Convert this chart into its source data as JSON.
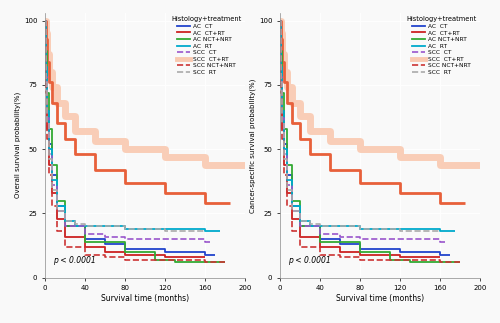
{
  "title_left": "Overall survival probability(%)",
  "title_right": "Cancer-specific survival probability(%)",
  "xlabel": "Survival time (months)",
  "pvalue": "p < 0.0001",
  "legend_title": "Histology+treatment",
  "background": "#f9f9f9",
  "grid_color": "#ffffff",
  "xlim": [
    0,
    200
  ],
  "ylim": [
    0,
    100
  ],
  "xticks": [
    0,
    40,
    80,
    120,
    160,
    200
  ],
  "yticks": [
    0,
    25,
    50,
    75,
    100
  ],
  "curves": [
    {
      "key": "SCC_CT_RT_band",
      "color": "#f9c9b0",
      "ls": "-",
      "lw": 5.0,
      "alpha": 0.9,
      "times": [
        0,
        1,
        1,
        2,
        2,
        4,
        4,
        7,
        7,
        12,
        12,
        20,
        20,
        30,
        30,
        50,
        50,
        80,
        80,
        120,
        120,
        160,
        160,
        200
      ],
      "surv": [
        100,
        100,
        95,
        95,
        87,
        87,
        80,
        80,
        74,
        74,
        68,
        68,
        63,
        63,
        57,
        57,
        53,
        53,
        50,
        50,
        47,
        47,
        44,
        44
      ]
    },
    {
      "key": "SCC_CT_RT",
      "color": "#e8603a",
      "ls": "-",
      "lw": 2.0,
      "alpha": 1.0,
      "times": [
        0,
        1,
        1,
        2,
        2,
        4,
        4,
        7,
        7,
        12,
        12,
        20,
        20,
        30,
        30,
        50,
        50,
        80,
        80,
        120,
        120,
        160,
        160,
        185
      ],
      "surv": [
        100,
        100,
        93,
        93,
        84,
        84,
        76,
        76,
        68,
        68,
        60,
        60,
        54,
        54,
        48,
        48,
        42,
        42,
        37,
        37,
        33,
        33,
        29,
        29
      ]
    },
    {
      "key": "AC_CT",
      "color": "#2244cc",
      "ls": "-",
      "lw": 1.3,
      "alpha": 1.0,
      "times": [
        0,
        1,
        1,
        2,
        2,
        4,
        4,
        7,
        7,
        12,
        12,
        20,
        20,
        40,
        40,
        60,
        60,
        80,
        80,
        120,
        120,
        160,
        160,
        170
      ],
      "surv": [
        100,
        100,
        80,
        80,
        65,
        65,
        52,
        52,
        40,
        40,
        28,
        28,
        20,
        20,
        15,
        15,
        13,
        13,
        11,
        11,
        10,
        10,
        9,
        9
      ]
    },
    {
      "key": "AC_CT_RT",
      "color": "#cc2222",
      "ls": "-",
      "lw": 1.3,
      "alpha": 1.0,
      "times": [
        0,
        1,
        1,
        2,
        2,
        4,
        4,
        7,
        7,
        12,
        12,
        20,
        20,
        40,
        40,
        60,
        60,
        80,
        80,
        120,
        120,
        160
      ],
      "surv": [
        100,
        100,
        75,
        75,
        58,
        58,
        44,
        44,
        33,
        33,
        23,
        23,
        16,
        16,
        12,
        12,
        10,
        10,
        9,
        9,
        8,
        8
      ]
    },
    {
      "key": "AC_NCT_NRT",
      "color": "#33aa33",
      "ls": "-",
      "lw": 1.3,
      "alpha": 1.0,
      "times": [
        0,
        1,
        1,
        2,
        2,
        4,
        4,
        7,
        7,
        12,
        12,
        20,
        20,
        40,
        40,
        80,
        80,
        110,
        110,
        130,
        130,
        180
      ],
      "surv": [
        100,
        100,
        88,
        88,
        72,
        72,
        58,
        58,
        44,
        44,
        30,
        30,
        20,
        20,
        14,
        14,
        10,
        10,
        7,
        7,
        6,
        6
      ]
    },
    {
      "key": "AC_RT",
      "color": "#00aacc",
      "ls": "-",
      "lw": 1.3,
      "alpha": 1.0,
      "times": [
        0,
        1,
        1,
        2,
        2,
        4,
        4,
        7,
        7,
        12,
        12,
        20,
        20,
        30,
        30,
        50,
        50,
        80,
        80,
        120,
        120,
        160,
        160,
        175
      ],
      "surv": [
        100,
        100,
        82,
        82,
        65,
        65,
        50,
        50,
        38,
        38,
        28,
        28,
        22,
        22,
        20,
        20,
        20,
        20,
        19,
        19,
        19,
        19,
        18,
        18
      ]
    },
    {
      "key": "SCC_CT",
      "color": "#9955cc",
      "ls": "--",
      "lw": 1.2,
      "alpha": 1.0,
      "times": [
        0,
        1,
        1,
        2,
        2,
        4,
        4,
        7,
        7,
        12,
        12,
        20,
        20,
        40,
        40,
        60,
        60,
        80,
        80,
        120,
        120,
        160,
        160,
        165
      ],
      "surv": [
        100,
        100,
        78,
        78,
        62,
        62,
        48,
        48,
        36,
        36,
        26,
        26,
        20,
        20,
        17,
        17,
        16,
        16,
        15,
        15,
        15,
        15,
        14,
        14
      ]
    },
    {
      "key": "SCC_NCT_NRT",
      "color": "#cc3333",
      "ls": "--",
      "lw": 1.2,
      "alpha": 1.0,
      "times": [
        0,
        1,
        1,
        2,
        2,
        4,
        4,
        7,
        7,
        12,
        12,
        20,
        20,
        40,
        40,
        60,
        60,
        80,
        80,
        120,
        120,
        160,
        160,
        180
      ],
      "surv": [
        100,
        100,
        72,
        72,
        54,
        54,
        40,
        40,
        28,
        28,
        18,
        18,
        12,
        12,
        9,
        9,
        8,
        8,
        7,
        7,
        7,
        7,
        6,
        6
      ]
    },
    {
      "key": "SCC_RT",
      "color": "#aaaaaa",
      "ls": "--",
      "lw": 1.2,
      "alpha": 1.0,
      "times": [
        0,
        1,
        1,
        2,
        2,
        4,
        4,
        7,
        7,
        12,
        12,
        20,
        20,
        30,
        30,
        40,
        40,
        60,
        60,
        80,
        80,
        120,
        120,
        160
      ],
      "surv": [
        100,
        100,
        76,
        76,
        60,
        60,
        46,
        46,
        34,
        34,
        26,
        26,
        22,
        22,
        21,
        21,
        20,
        20,
        20,
        20,
        19,
        19,
        18,
        18
      ]
    }
  ],
  "legend_entries": [
    {
      "label": "AC  CT",
      "color": "#2244cc",
      "ls": "-",
      "lw": 1.3
    },
    {
      "label": "AC  CT+RT",
      "color": "#cc2222",
      "ls": "-",
      "lw": 1.3
    },
    {
      "label": "AC NCT+NRT",
      "color": "#33aa33",
      "ls": "-",
      "lw": 1.3
    },
    {
      "label": "AC  RT",
      "color": "#00aacc",
      "ls": "-",
      "lw": 1.3
    },
    {
      "label": "SCC  CT",
      "color": "#9955cc",
      "ls": "--",
      "lw": 1.2
    },
    {
      "label": "SCC  CT+RT",
      "color": "#f9c9b0",
      "ls": "-",
      "lw": 3.5
    },
    {
      "label": "SCC NCT+NRT",
      "color": "#cc3333",
      "ls": "--",
      "lw": 1.2
    },
    {
      "label": "SCC  RT",
      "color": "#aaaaaa",
      "ls": "--",
      "lw": 1.2
    }
  ]
}
